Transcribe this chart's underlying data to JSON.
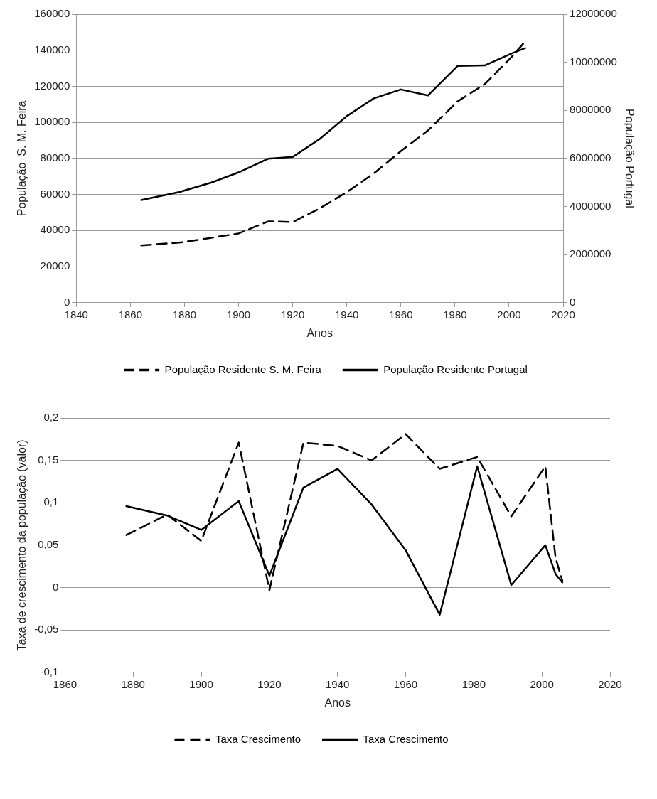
{
  "chart_data": [
    {
      "type": "line",
      "xlabel": "Anos",
      "ylabel": "População  S. M. Feira",
      "y2label": "População Portugal",
      "x": [
        1864,
        1878,
        1890,
        1900,
        1911,
        1920,
        1930,
        1940,
        1950,
        1960,
        1970,
        1981,
        1991,
        2001,
        2006
      ],
      "series": [
        {
          "name": "População Residente S. M. Feira",
          "color": "#000000",
          "line_style": "dashed",
          "values": [
            31800,
            33300,
            36000,
            38400,
            45100,
            44700,
            52300,
            61300,
            71700,
            84100,
            95500,
            111700,
            121200,
            136400,
            145000
          ]
        },
        {
          "name": "População Residente Portugal",
          "color": "#000000",
          "line_style": "solid",
          "axis": "y2",
          "values": [
            4270000,
            4600000,
            5000000,
            5420000,
            5990000,
            6060000,
            6810000,
            7760000,
            8500000,
            8870000,
            8620000,
            9850000,
            9870000,
            10370000,
            10590000
          ]
        }
      ],
      "xlim": [
        1840,
        2020
      ],
      "xticks": [
        1840,
        1860,
        1880,
        1900,
        1920,
        1940,
        1960,
        1980,
        2000,
        2020
      ],
      "ylim": [
        0,
        160000
      ],
      "yticks": [
        0,
        20000,
        40000,
        60000,
        80000,
        100000,
        120000,
        140000,
        160000
      ],
      "y2lim": [
        0,
        12000000
      ],
      "y2ticks": [
        0,
        2000000,
        4000000,
        6000000,
        8000000,
        10000000,
        12000000
      ],
      "grid": "y",
      "legend": "bottom",
      "marker": "none"
    },
    {
      "type": "line",
      "xlabel": "Anos",
      "ylabel": "Taxa de crescimento da população (valor)",
      "x": [
        1878,
        1890,
        1900,
        1911,
        1920,
        1930,
        1940,
        1950,
        1960,
        1970,
        1981,
        1991,
        2001,
        2004,
        2006
      ],
      "series": [
        {
          "name": "Taxa Crescimento",
          "color": "#000000",
          "line_style": "dashed",
          "values": [
            0.062,
            0.086,
            0.055,
            0.171,
            -0.003,
            0.171,
            0.167,
            0.15,
            0.181,
            0.14,
            0.154,
            0.084,
            0.143,
            0.035,
            0.008
          ]
        },
        {
          "name": "Taxa Crescimento",
          "color": "#000000",
          "line_style": "solid",
          "values": [
            0.096,
            0.085,
            0.068,
            0.102,
            0.014,
            0.118,
            0.14,
            0.098,
            0.044,
            -0.032,
            0.143,
            0.003,
            0.05,
            0.016,
            0.006
          ]
        }
      ],
      "xlim": [
        1860,
        2020
      ],
      "xticks": [
        1860,
        1880,
        1900,
        1920,
        1940,
        1960,
        1980,
        2000,
        2020
      ],
      "ylim": [
        -0.1,
        0.2
      ],
      "yticks": [
        {
          "value": -0.1,
          "label": "-0,1"
        },
        {
          "value": -0.05,
          "label": "-0,05"
        },
        {
          "value": 0,
          "label": "0"
        },
        {
          "value": 0.05,
          "label": "0,05"
        },
        {
          "value": 0.1,
          "label": "0,1"
        },
        {
          "value": 0.15,
          "label": "0,15"
        },
        {
          "value": 0.2,
          "label": "0,2"
        }
      ],
      "grid": "y",
      "legend": "bottom",
      "marker": "none"
    }
  ]
}
